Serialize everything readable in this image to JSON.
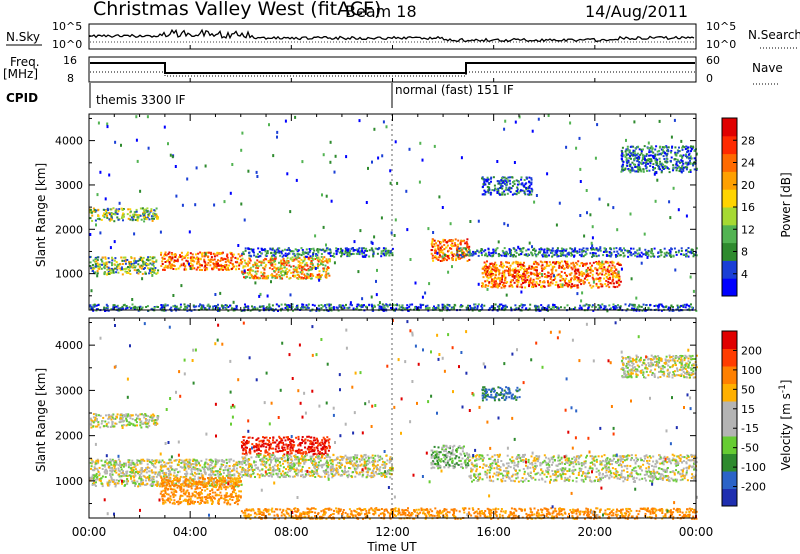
{
  "header": {
    "station": "Christmas Valley West (fitACF)",
    "beam": "Beam 18",
    "date": "14/Aug/2011"
  },
  "panels": {
    "nsky_label": "N.Sky",
    "nsky_ticks": [
      "10^5",
      "10^0"
    ],
    "nsearch_label": "N.Search",
    "nsearch_ticks": [
      "10^5",
      "10^0"
    ],
    "freq_label_1": "Freq.",
    "freq_label_2": "[MHz]",
    "freq_ticks": [
      "16",
      "8"
    ],
    "nave_label": "Nave",
    "nave_ticks": [
      "60",
      "0"
    ],
    "cpid_label": "CPID",
    "cpid_segments": [
      {
        "text": "themis 3300 IF",
        "start_hour": 0
      },
      {
        "text": "normal (fast) 151 IF",
        "start_hour": 12
      }
    ]
  },
  "colorbars": {
    "power": {
      "label": "Power [dB]",
      "ticks": [
        "28",
        "24",
        "20",
        "16",
        "12",
        "8",
        "4"
      ],
      "colors": [
        "#0000ff",
        "#1a3fd6",
        "#2e8a2e",
        "#52b352",
        "#a6d933",
        "#ffd400",
        "#ffa000",
        "#ff6a00",
        "#ff2a00",
        "#e00000"
      ]
    },
    "velocity": {
      "label": "Velocity [m s",
      "label_sup": "-1",
      "label_end": "]",
      "ticks": [
        "200",
        "100",
        "50",
        "15",
        "-15",
        "-50",
        "-100",
        "-200"
      ],
      "colors": [
        "#1f2fb0",
        "#2b63c8",
        "#2e8a2e",
        "#66cc33",
        "#b4b4b4",
        "#b4b4b4",
        "#ffb000",
        "#ff8000",
        "#ff3c00",
        "#e00000"
      ]
    }
  },
  "chart_data": [
    {
      "type": "heatmap",
      "title": "Power",
      "xlabel": "Time UT",
      "ylabel": "Slant Range [km]",
      "x_range_hours": [
        0,
        24
      ],
      "x_ticks": [
        "00:00",
        "04:00",
        "08:00",
        "12:00",
        "16:00",
        "20:00",
        "00:00"
      ],
      "y_range_km": [
        180,
        4600
      ],
      "y_ticks": [
        1000,
        2000,
        3000,
        4000
      ],
      "regions": [
        {
          "t0": 0.0,
          "t1": 2.7,
          "r0": 2200,
          "r1": 2500,
          "level": "mid"
        },
        {
          "t0": 0.0,
          "t1": 2.7,
          "r0": 1000,
          "r1": 1400,
          "level": "mid"
        },
        {
          "t0": 2.8,
          "t1": 6.0,
          "r0": 1100,
          "r1": 1500,
          "level": "high"
        },
        {
          "t0": 6.0,
          "t1": 9.5,
          "r0": 900,
          "r1": 1400,
          "level": "mid-high"
        },
        {
          "t0": 6.0,
          "t1": 12.0,
          "r0": 1400,
          "r1": 1600,
          "level": "low"
        },
        {
          "t0": 13.5,
          "t1": 15.0,
          "r0": 1300,
          "r1": 1800,
          "level": "high"
        },
        {
          "t0": 15.5,
          "t1": 21.0,
          "r0": 700,
          "r1": 1300,
          "level": "high"
        },
        {
          "t0": 14.5,
          "t1": 24.0,
          "r0": 1400,
          "r1": 1600,
          "level": "low"
        },
        {
          "t0": 15.5,
          "t1": 17.5,
          "r0": 2800,
          "r1": 3200,
          "level": "low"
        },
        {
          "t0": 21.0,
          "t1": 24.0,
          "r0": 3300,
          "r1": 3900,
          "level": "low"
        },
        {
          "t0": 0.0,
          "t1": 24.0,
          "r0": 180,
          "r1": 330,
          "level": "low"
        }
      ]
    },
    {
      "type": "heatmap",
      "title": "Velocity",
      "xlabel": "Time UT",
      "ylabel": "Slant Range [km]",
      "x_range_hours": [
        0,
        24
      ],
      "x_ticks": [
        "00:00",
        "04:00",
        "08:00",
        "12:00",
        "16:00",
        "20:00",
        "00:00"
      ],
      "y_range_km": [
        180,
        4600
      ],
      "y_ticks": [
        1000,
        2000,
        3000,
        4000
      ],
      "regions": [
        {
          "t0": 0.0,
          "t1": 2.7,
          "r0": 2200,
          "r1": 2500,
          "vel": 0
        },
        {
          "t0": 0.0,
          "t1": 6.0,
          "r0": 900,
          "r1": 1500,
          "vel": 0
        },
        {
          "t0": 2.8,
          "t1": 6.0,
          "r0": 500,
          "r1": 1100,
          "vel": -60
        },
        {
          "t0": 6.0,
          "t1": 9.5,
          "r0": 1600,
          "r1": 2000,
          "vel": -200
        },
        {
          "t0": 6.0,
          "t1": 12.0,
          "r0": 1100,
          "r1": 1600,
          "vel": 0
        },
        {
          "t0": 13.5,
          "t1": 15.0,
          "r0": 1300,
          "r1": 1800,
          "vel": 20
        },
        {
          "t0": 15.0,
          "t1": 24.0,
          "r0": 1000,
          "r1": 1600,
          "vel": 0
        },
        {
          "t0": 15.5,
          "t1": 17.0,
          "r0": 2800,
          "r1": 3100,
          "vel": 80
        },
        {
          "t0": 21.0,
          "t1": 24.0,
          "r0": 3300,
          "r1": 3800,
          "vel": 0
        },
        {
          "t0": 6.0,
          "t1": 24.0,
          "r0": 180,
          "r1": 420,
          "vel": -60
        }
      ]
    }
  ]
}
